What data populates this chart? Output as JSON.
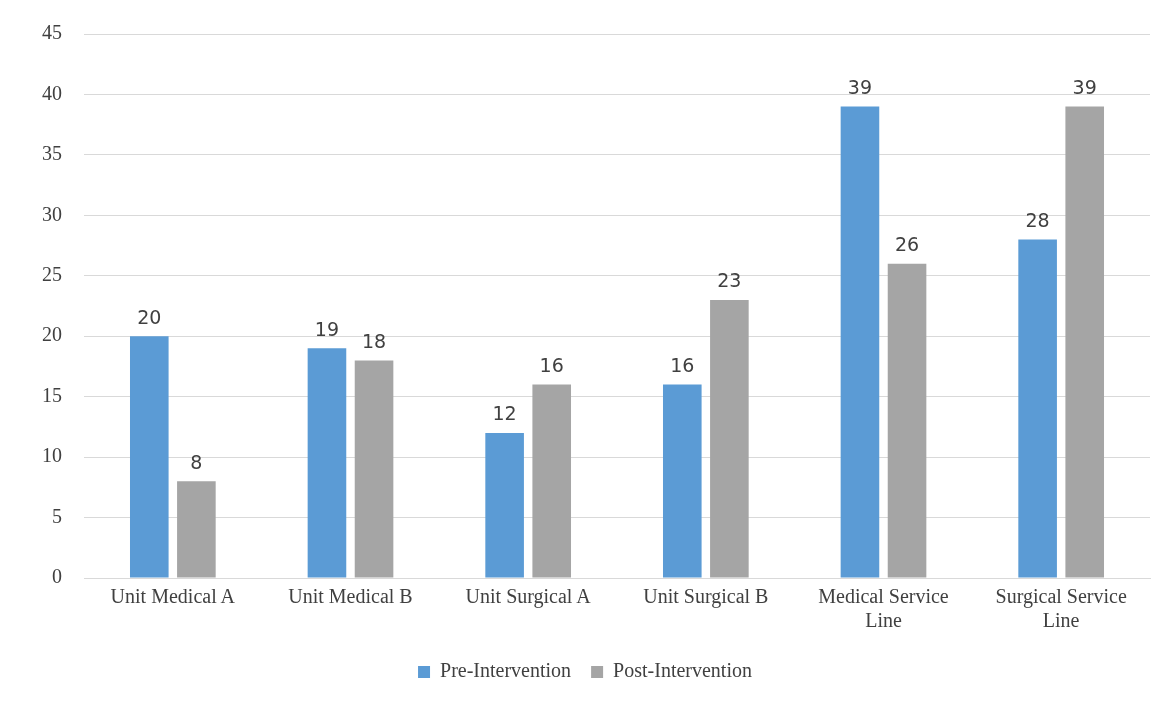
{
  "chart_data": {
    "type": "bar",
    "categories": [
      "Unit Medical A",
      "Unit Medical B",
      "Unit Surgical A",
      "Unit Surgical B",
      "Medical Service Line",
      "Surgical Service Line"
    ],
    "series": [
      {
        "name": "Pre-Intervention",
        "color": "#5b9bd5",
        "values": [
          20,
          19,
          12,
          16,
          39,
          28
        ]
      },
      {
        "name": "Post-Intervention",
        "color": "#a5a5a5",
        "values": [
          8,
          18,
          16,
          23,
          26,
          39
        ]
      }
    ],
    "ylim": [
      0,
      45
    ],
    "yticks": [
      0,
      5,
      10,
      15,
      20,
      25,
      30,
      35,
      40,
      45
    ],
    "grid": "y",
    "legend": "bottom",
    "data_labels": true
  }
}
